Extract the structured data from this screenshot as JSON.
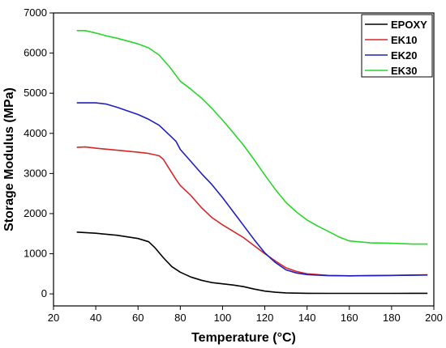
{
  "chart_data": {
    "type": "line",
    "title": "",
    "xlabel": "Temperature (°C)",
    "ylabel": "Storage Modulus (MPa)",
    "xlim": [
      20,
      200
    ],
    "ylim": [
      -300,
      7000
    ],
    "x_ticks": [
      20,
      40,
      60,
      80,
      100,
      120,
      140,
      160,
      180,
      200
    ],
    "y_ticks": [
      0,
      1000,
      2000,
      3000,
      4000,
      5000,
      6000,
      7000
    ],
    "grid": false,
    "legend_position": "top-right",
    "series": [
      {
        "name": "EPOXY",
        "color": "#000000",
        "x": [
          31,
          40,
          50,
          60,
          65,
          68,
          72,
          76,
          80,
          85,
          90,
          95,
          100,
          105,
          110,
          115,
          120,
          125,
          130,
          140,
          150,
          160,
          170,
          180,
          190,
          197
        ],
        "y": [
          1540,
          1510,
          1460,
          1380,
          1300,
          1150,
          900,
          680,
          540,
          420,
          340,
          280,
          250,
          220,
          180,
          120,
          70,
          40,
          25,
          15,
          12,
          12,
          12,
          12,
          15,
          15
        ]
      },
      {
        "name": "EK10",
        "color": "#d62728",
        "x": [
          31,
          35,
          40,
          50,
          60,
          65,
          70,
          72,
          75,
          78,
          80,
          85,
          90,
          95,
          100,
          105,
          110,
          115,
          120,
          125,
          130,
          135,
          140,
          150,
          160,
          170,
          180,
          190,
          197
        ],
        "y": [
          3650,
          3660,
          3630,
          3580,
          3530,
          3500,
          3440,
          3350,
          3100,
          2850,
          2700,
          2450,
          2150,
          1900,
          1720,
          1560,
          1400,
          1200,
          1000,
          820,
          650,
          560,
          500,
          460,
          450,
          455,
          460,
          470,
          475
        ]
      },
      {
        "name": "EK20",
        "color": "#1f1fbf",
        "x": [
          31,
          35,
          40,
          45,
          50,
          55,
          60,
          65,
          70,
          75,
          78,
          80,
          85,
          90,
          95,
          100,
          105,
          110,
          115,
          120,
          125,
          130,
          135,
          140,
          150,
          160,
          170,
          180,
          190,
          197
        ],
        "y": [
          4760,
          4760,
          4760,
          4730,
          4650,
          4560,
          4470,
          4350,
          4200,
          3950,
          3800,
          3600,
          3300,
          3000,
          2720,
          2400,
          2050,
          1700,
          1350,
          1020,
          780,
          600,
          520,
          480,
          455,
          450,
          455,
          460,
          465,
          470
        ]
      },
      {
        "name": "EK30",
        "color": "#2bd62b",
        "x": [
          31,
          35,
          40,
          45,
          50,
          55,
          60,
          65,
          70,
          75,
          80,
          85,
          90,
          95,
          100,
          105,
          110,
          115,
          120,
          125,
          130,
          135,
          140,
          145,
          150,
          155,
          160,
          170,
          180,
          190,
          197
        ],
        "y": [
          6560,
          6560,
          6500,
          6430,
          6370,
          6300,
          6230,
          6130,
          5950,
          5650,
          5300,
          5100,
          4880,
          4620,
          4330,
          4020,
          3700,
          3340,
          2960,
          2600,
          2280,
          2040,
          1840,
          1690,
          1560,
          1420,
          1320,
          1270,
          1260,
          1240,
          1240
        ]
      }
    ]
  }
}
